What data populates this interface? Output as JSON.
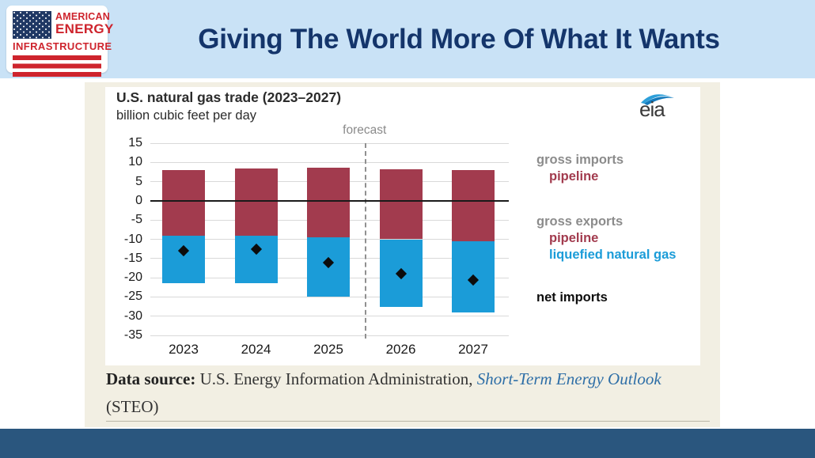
{
  "header": {
    "title": "Giving The World More Of What It Wants",
    "logo": {
      "line1": "AMERICAN",
      "line2": "ENERGY",
      "line3": "INFRASTRUCTURE"
    }
  },
  "chart_data": {
    "type": "bar",
    "stacked": true,
    "title": "U.S. natural gas trade (2023–2027)",
    "subtitle": "billion cubic feet per day",
    "categories": [
      "2023",
      "2024",
      "2025",
      "2026",
      "2027"
    ],
    "series": [
      {
        "name": "gross imports pipeline",
        "role": "positive-stack",
        "color": "#a23b4e",
        "values": [
          8.0,
          8.5,
          8.7,
          8.2,
          8.0
        ]
      },
      {
        "name": "gross exports pipeline",
        "role": "negative-stack",
        "color": "#a23b4e",
        "values": [
          -9.0,
          -9.0,
          -9.5,
          -10.0,
          -10.5
        ]
      },
      {
        "name": "gross exports liquefied natural gas",
        "role": "negative-stack",
        "color": "#1b9cd8",
        "values": [
          -12.5,
          -12.5,
          -15.5,
          -17.5,
          -18.5
        ]
      },
      {
        "name": "net imports",
        "role": "scatter-diamond",
        "color": "#0c0c0c",
        "values": [
          -13.0,
          -12.5,
          -16.0,
          -19.0,
          -20.5
        ]
      }
    ],
    "ylim": [
      -35,
      15
    ],
    "yticks": [
      15,
      10,
      5,
      0,
      -5,
      -10,
      -15,
      -20,
      -25,
      -30,
      -35
    ],
    "grid": true,
    "legend_position": "right",
    "forecast_label": "forecast",
    "forecast_divider_after": "2025"
  },
  "figure": {
    "eia_logo_text": "eia",
    "legend": {
      "group1_label": "gross imports",
      "group1_item1": "pipeline",
      "group2_label": "gross exports",
      "group2_item1": "pipeline",
      "group2_item2": "liquefied natural gas",
      "net_label": "net imports"
    },
    "source": {
      "prefix_bold": "Data source:",
      "body": " U.S. Energy Information Administration, ",
      "link": "Short-Term Energy Outlook",
      "suffix": " (STEO)"
    }
  },
  "colors": {
    "header_bg": "#c9e2f6",
    "title_navy": "#14356b",
    "footer_bg": "#2a567e",
    "figure_bg": "#f2efe3",
    "bar_red": "#a23b4e",
    "bar_blue": "#1b9cd8",
    "legend_gray": "#8c8c8c",
    "link_blue": "#2f6fa7"
  }
}
